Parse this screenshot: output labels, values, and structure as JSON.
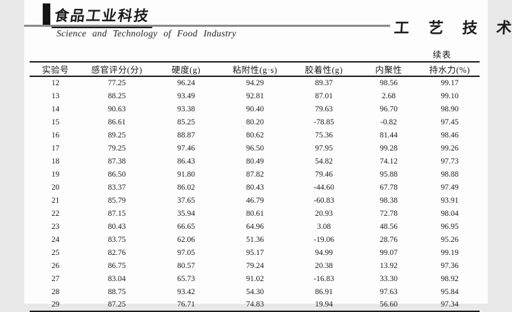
{
  "masthead": {
    "journal_logo_cn": "食品工业科技",
    "journal_name_en": "Science and Technology of Food Industry",
    "section_title": "工 艺 技 术",
    "continued_label": "续表"
  },
  "table": {
    "columns": [
      "实验号",
      "感官评分(分)",
      "硬度(g)",
      "粘附性(g·s)",
      "胶着性(g)",
      "内聚性",
      "持水力(%)"
    ],
    "rows": [
      [
        "12",
        "77.25",
        "96.24",
        "94.29",
        "89.37",
        "98.56",
        "99.17"
      ],
      [
        "13",
        "88.25",
        "93.49",
        "92.81",
        "87.01",
        "2.68",
        "99.10"
      ],
      [
        "14",
        "90.63",
        "93.38",
        "90.40",
        "79.63",
        "96.70",
        "98.90"
      ],
      [
        "15",
        "86.61",
        "85.25",
        "80.20",
        "-78.85",
        "-0.82",
        "97.45"
      ],
      [
        "16",
        "89.25",
        "88.87",
        "80.62",
        "75.36",
        "81.44",
        "98.46"
      ],
      [
        "17",
        "79.25",
        "97.46",
        "96.50",
        "97.95",
        "99.28",
        "99.26"
      ],
      [
        "18",
        "87.38",
        "86.43",
        "80.49",
        "54.82",
        "74.12",
        "97.73"
      ],
      [
        "19",
        "86.50",
        "91.80",
        "87.82",
        "79.46",
        "95.88",
        "98.88"
      ],
      [
        "20",
        "83.37",
        "86.02",
        "80.43",
        "-44.60",
        "67.78",
        "97.49"
      ],
      [
        "21",
        "85.79",
        "37.65",
        "46.79",
        "-60.83",
        "98.38",
        "93.91"
      ],
      [
        "22",
        "87.15",
        "35.94",
        "80.61",
        "20.93",
        "72.78",
        "98.04"
      ],
      [
        "23",
        "80.43",
        "66.65",
        "64.96",
        "3.08",
        "48.56",
        "96.95"
      ],
      [
        "24",
        "83.75",
        "62.06",
        "51.36",
        "-19.06",
        "28.76",
        "95.26"
      ],
      [
        "25",
        "82.76",
        "97.05",
        "95.17",
        "94.99",
        "99.07",
        "99.19"
      ],
      [
        "26",
        "86.75",
        "80.57",
        "79.24",
        "20.38",
        "13.92",
        "97.36"
      ],
      [
        "27",
        "83.04",
        "65.73",
        "91.02",
        "-16.83",
        "33.30",
        "98.92"
      ],
      [
        "28",
        "88.75",
        "93.42",
        "54.30",
        "86.91",
        "97.63",
        "95.84"
      ],
      [
        "29",
        "87.25",
        "76.71",
        "74.83",
        "19.94",
        "56.60",
        "97.34"
      ]
    ]
  }
}
